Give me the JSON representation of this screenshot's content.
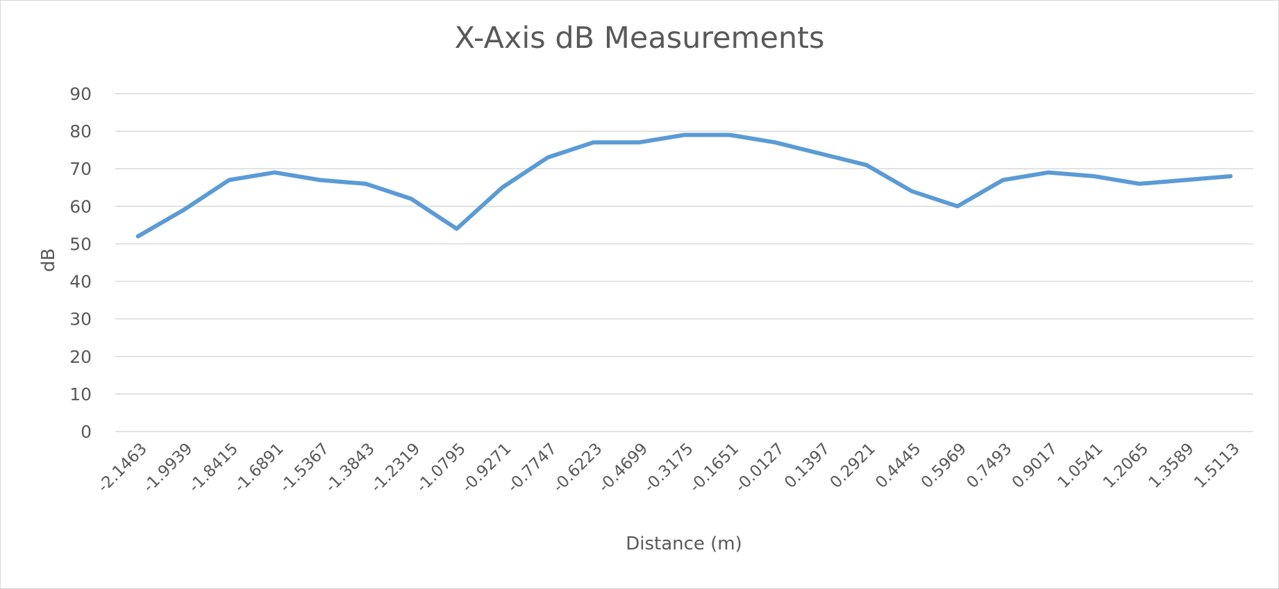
{
  "chart_data": {
    "type": "line",
    "title": "X-Axis dB Measurements",
    "xlabel": "Distance (m)",
    "ylabel": "dB",
    "ylim": [
      0,
      90
    ],
    "yticks": [
      0,
      10,
      20,
      30,
      40,
      50,
      60,
      70,
      80,
      90
    ],
    "grid": true,
    "legend": "none",
    "line_color": "#5b9bd5",
    "categories": [
      "-2.1463",
      "-1.9939",
      "-1.8415",
      "-1.6891",
      "-1.5367",
      "-1.3843",
      "-1.2319",
      "-1.0795",
      "-0.9271",
      "-0.7747",
      "-0.6223",
      "-0.4699",
      "-0.3175",
      "-0.1651",
      "-0.0127",
      "0.1397",
      "0.2921",
      "0.4445",
      "0.5969",
      "0.7493",
      "0.9017",
      "1.0541",
      "1.2065",
      "1.3589",
      "1.5113"
    ],
    "series": [
      {
        "values": [
          52,
          59,
          67,
          69,
          67,
          66,
          62,
          54,
          65,
          73,
          77,
          77,
          79,
          79,
          77,
          74,
          71,
          64,
          60,
          67,
          69,
          68,
          66,
          67,
          68
        ]
      }
    ]
  }
}
